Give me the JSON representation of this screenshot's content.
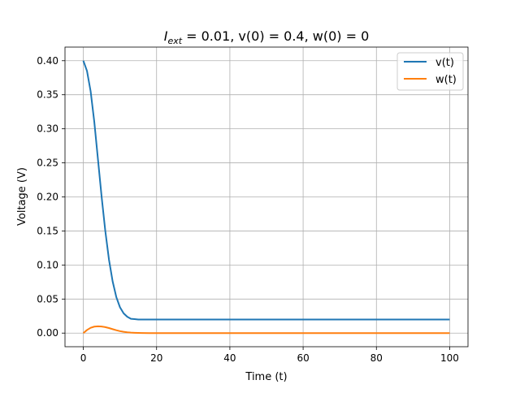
{
  "chart_data": {
    "type": "line",
    "title_prefix": "I",
    "title_subscript": "ext",
    "title_rest": " = 0.01, v(0) = 0.4, w(0) = 0",
    "xlabel": "Time (t)",
    "ylabel": "Voltage (V)",
    "xlim": [
      -5,
      105
    ],
    "ylim": [
      -0.02,
      0.42
    ],
    "xticks": [
      0,
      20,
      40,
      60,
      80,
      100
    ],
    "xtick_labels": [
      "0",
      "20",
      "40",
      "60",
      "80",
      "100"
    ],
    "yticks": [
      0.0,
      0.05,
      0.1,
      0.15,
      0.2,
      0.25,
      0.3,
      0.35,
      0.4
    ],
    "ytick_labels": [
      "0.00",
      "0.05",
      "0.10",
      "0.15",
      "0.20",
      "0.25",
      "0.30",
      "0.35",
      "0.40"
    ],
    "grid": true,
    "legend_position": "top-right",
    "series": [
      {
        "name": "v(t)",
        "color": "#1f77b4",
        "x": [
          0,
          1,
          2,
          3,
          4,
          5,
          6,
          7,
          8,
          9,
          10,
          11,
          12,
          13,
          14,
          15,
          16,
          17,
          18,
          20,
          25,
          30,
          40,
          50,
          60,
          70,
          80,
          90,
          100
        ],
        "y": [
          0.4,
          0.385,
          0.355,
          0.31,
          0.255,
          0.2,
          0.15,
          0.108,
          0.076,
          0.053,
          0.038,
          0.029,
          0.024,
          0.021,
          0.0205,
          0.02,
          0.02,
          0.02,
          0.02,
          0.02,
          0.02,
          0.02,
          0.02,
          0.02,
          0.02,
          0.02,
          0.02,
          0.02,
          0.02
        ]
      },
      {
        "name": "w(t)",
        "color": "#ff7f0e",
        "x": [
          0,
          1,
          2,
          3,
          4,
          5,
          6,
          7,
          8,
          9,
          10,
          11,
          12,
          13,
          14,
          15,
          16,
          18,
          20,
          30,
          40,
          50,
          60,
          70,
          80,
          90,
          100
        ],
        "y": [
          0.0,
          0.0045,
          0.0078,
          0.0095,
          0.01,
          0.0097,
          0.0088,
          0.0074,
          0.0058,
          0.0042,
          0.0029,
          0.0019,
          0.0012,
          0.0007,
          0.0004,
          0.0002,
          0.0001,
          0.0,
          0.0,
          0.0,
          0.0,
          0.0,
          0.0,
          0.0,
          0.0,
          0.0,
          0.0
        ]
      }
    ]
  }
}
